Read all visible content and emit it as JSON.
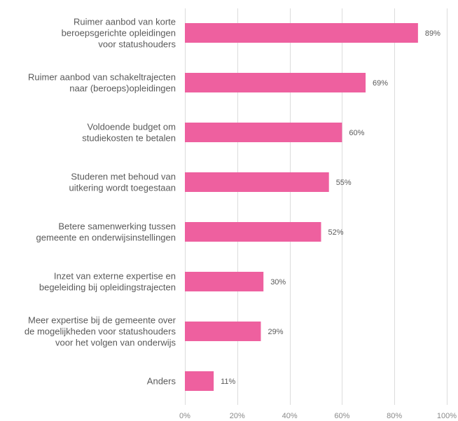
{
  "chart_data": {
    "type": "bar",
    "orientation": "horizontal",
    "categories": [
      [
        "Ruimer aanbod van korte",
        "beroepsgerichte opleidingen",
        "voor statushouders"
      ],
      [
        "Ruimer aanbod van schakeltrajecten",
        "naar (beroeps)opleidingen"
      ],
      [
        "Voldoende budget om",
        "studiekosten te betalen"
      ],
      [
        "Studeren met behoud van",
        "uitkering wordt toegestaan"
      ],
      [
        "Betere samenwerking tussen",
        "gemeente en onderwijsinstellingen"
      ],
      [
        "Inzet van externe expertise en",
        "begeleiding bij opleidingstrajecten"
      ],
      [
        "Meer expertise bij de gemeente over",
        "de mogelijkheden voor statushouders",
        "voor het volgen van onderwijs"
      ],
      [
        "Anders"
      ]
    ],
    "values": [
      89,
      69,
      60,
      55,
      52,
      30,
      29,
      11
    ],
    "value_labels": [
      "89%",
      "69%",
      "60%",
      "55%",
      "52%",
      "30%",
      "29%",
      "11%"
    ],
    "x_ticks": [
      0,
      20,
      40,
      60,
      80,
      100
    ],
    "x_tick_labels": [
      "0%",
      "20%",
      "40%",
      "60%",
      "80%",
      "100%"
    ],
    "xlim": [
      0,
      100
    ],
    "grid": true,
    "bar_color": "#ee609f",
    "title": "",
    "xlabel": "",
    "ylabel": ""
  }
}
